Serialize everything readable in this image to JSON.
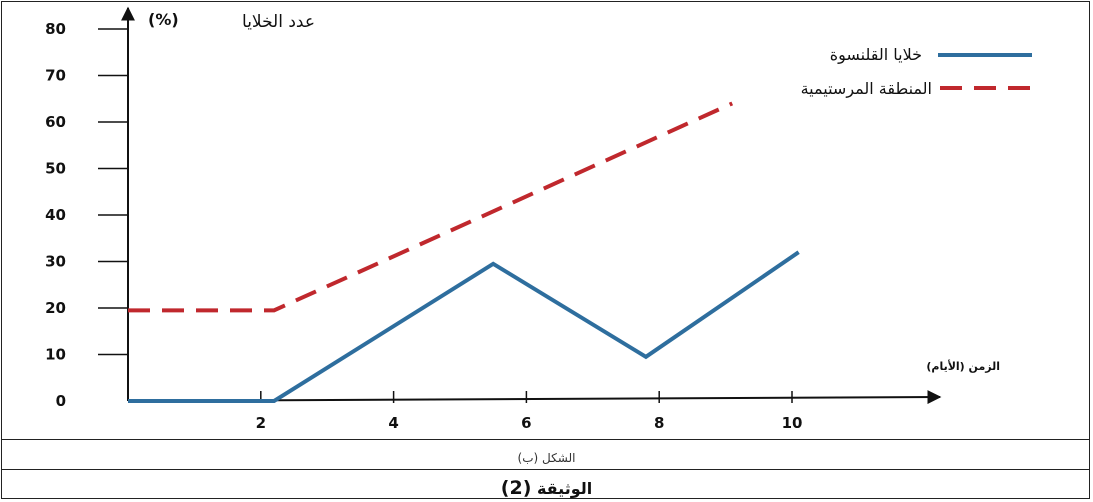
{
  "chart_data": {
    "type": "line",
    "ylabel": "عدد الخلايا",
    "ylabel_unit": "(%)",
    "xlabel": "الزمن (الأيام)",
    "y_ticks": [
      0,
      10,
      20,
      30,
      40,
      50,
      60,
      70,
      80
    ],
    "x_ticks": [
      2,
      4,
      6,
      8,
      10
    ],
    "ylim": [
      0,
      80
    ],
    "xlim": [
      0,
      11
    ],
    "grid": false,
    "legend_position": "top-right",
    "series": [
      {
        "name": "خلايا القلنسوة",
        "style": "solid",
        "color": "#2e6e9e",
        "points": [
          [
            0,
            0
          ],
          [
            2.2,
            0
          ],
          [
            5.5,
            29.5
          ],
          [
            7.8,
            9.5
          ],
          [
            10.1,
            32
          ]
        ]
      },
      {
        "name": "المنطقة المرستيمية",
        "style": "dashed",
        "color": "#c0282d",
        "points": [
          [
            0,
            19.5
          ],
          [
            2.2,
            19.5
          ],
          [
            9.1,
            64
          ]
        ]
      }
    ]
  },
  "captions": {
    "figure": "الشكل (ب)",
    "document": "الوثيقة",
    "document_number": "(2)"
  }
}
